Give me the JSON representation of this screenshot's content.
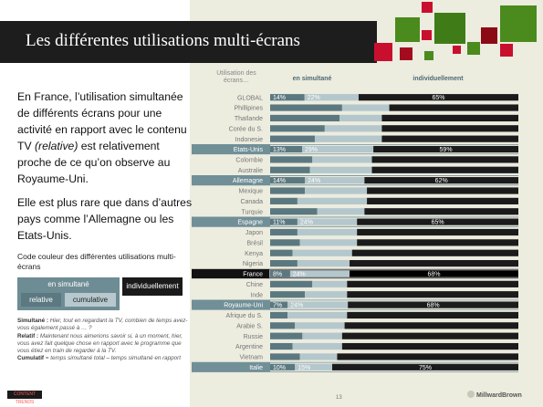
{
  "header": {
    "title": "Les différentes utilisations multi-écrans"
  },
  "text": {
    "para1_a": "En France, l’utilisation simultanée de différents écrans pour une activité en rapport avec le contenu TV ",
    "para1_em": "(relative)",
    "para1_b": " est relativement proche de ce qu’on observe au Royaume-Uni.",
    "para2": "Elle est plus rare que dans d’autres pays comme l’Allemagne ou les Etats-Unis."
  },
  "legend": {
    "title": "Code couleur des différentes utilisations multi-écrans",
    "simultane": "en simultané",
    "relative": "relative",
    "cumulative": "cumulative",
    "individuellement": "individuellement"
  },
  "notes": {
    "simultane_label": "Simultané :",
    "simultane_text": " Hier, tout en regardant la TV, combien de temps avez-vous également passé à … ?",
    "relatif_label": "Relatif :",
    "relatif_text": " Maintenant nous aimerions savoir si, à un moment, hier, vous avez fait quelque chose en rapport avec le programme que vous étiez en train de regarder à la TV.",
    "cumulatif_label": "Cumulatif",
    "cumulatif_text": " = temps simultané total – temps simultané en rapport"
  },
  "footer": {
    "page": "13",
    "brand": "MillwardBrown",
    "left_logo": "CONTENT TRENDS"
  },
  "colors": {
    "relative": "#5b7880",
    "cumulative": "#b4c7cc",
    "individual": "#1b1b1b",
    "highlight_row": "#718f97",
    "france_row": "#111111",
    "accent_red": "#c8102e",
    "accent_green": "#4b8a1d"
  },
  "chart_data": {
    "type": "bar",
    "stacked": true,
    "orientation": "horizontal",
    "column_headers": {
      "category": "Utilisation des écrans…",
      "simultaneous": "en simultané",
      "individual": "individuellement"
    },
    "series": [
      {
        "name": "relative"
      },
      {
        "name": "cumulative"
      },
      {
        "name": "individuellement"
      }
    ],
    "categories": [
      "GLOBAL",
      "Phillipines",
      "Thaïlande",
      "Corée du S.",
      "Indonesie",
      "Etats-Unis",
      "Colombie",
      "Australie",
      "Allemagne",
      "Mexique",
      "Canada",
      "Turquie",
      "Espagne",
      "Japon",
      "Brésil",
      "Kenya",
      "Nigeria",
      "France",
      "Chine",
      "Inde",
      "Royaume-Uni",
      "Afrique du S.",
      "Arabie S.",
      "Russie",
      "Argentine",
      "Vietnam",
      "Italie"
    ],
    "rows": [
      {
        "label": "GLOBAL",
        "relative": 14,
        "cumulative": 22,
        "individual": 65,
        "show_values": true,
        "highlight": false
      },
      {
        "label": "Phillipines",
        "relative": 29,
        "cumulative": 19,
        "individual": 52,
        "show_values": false,
        "highlight": false
      },
      {
        "label": "Thaïlande",
        "relative": 28,
        "cumulative": 17,
        "individual": 55,
        "show_values": false,
        "highlight": false
      },
      {
        "label": "Corée du S.",
        "relative": 22,
        "cumulative": 23,
        "individual": 55,
        "show_values": false,
        "highlight": false
      },
      {
        "label": "Indonesie",
        "relative": 18,
        "cumulative": 27,
        "individual": 55,
        "show_values": false,
        "highlight": false
      },
      {
        "label": "Etats-Unis",
        "relative": 13,
        "cumulative": 29,
        "individual": 59,
        "show_values": true,
        "highlight": true
      },
      {
        "label": "Colombie",
        "relative": 17,
        "cumulative": 24,
        "individual": 59,
        "show_values": false,
        "highlight": false
      },
      {
        "label": "Australie",
        "relative": 16,
        "cumulative": 25,
        "individual": 59,
        "show_values": false,
        "highlight": false
      },
      {
        "label": "Allemagne",
        "relative": 14,
        "cumulative": 24,
        "individual": 62,
        "show_values": true,
        "highlight": true
      },
      {
        "label": "Mexique",
        "relative": 14,
        "cumulative": 25,
        "individual": 61,
        "show_values": false,
        "highlight": false
      },
      {
        "label": "Canada",
        "relative": 11,
        "cumulative": 28,
        "individual": 61,
        "show_values": false,
        "highlight": false
      },
      {
        "label": "Turquie",
        "relative": 19,
        "cumulative": 19,
        "individual": 62,
        "show_values": false,
        "highlight": false
      },
      {
        "label": "Espagne",
        "relative": 11,
        "cumulative": 24,
        "individual": 65,
        "show_values": true,
        "highlight": true
      },
      {
        "label": "Japon",
        "relative": 11,
        "cumulative": 24,
        "individual": 65,
        "show_values": false,
        "highlight": false
      },
      {
        "label": "Brésil",
        "relative": 12,
        "cumulative": 23,
        "individual": 65,
        "show_values": false,
        "highlight": false
      },
      {
        "label": "Kenya",
        "relative": 9,
        "cumulative": 24,
        "individual": 67,
        "show_values": false,
        "highlight": false
      },
      {
        "label": "Nigeria",
        "relative": 11,
        "cumulative": 21,
        "individual": 68,
        "show_values": false,
        "highlight": false
      },
      {
        "label": "France",
        "relative": 8,
        "cumulative": 24,
        "individual": 68,
        "show_values": true,
        "highlight": "france"
      },
      {
        "label": "Chine",
        "relative": 17,
        "cumulative": 14,
        "individual": 69,
        "show_values": false,
        "highlight": false
      },
      {
        "label": "Inde",
        "relative": 14,
        "cumulative": 17,
        "individual": 69,
        "show_values": false,
        "highlight": false
      },
      {
        "label": "Royaume-Uni",
        "relative": 7,
        "cumulative": 24,
        "individual": 68,
        "show_values": true,
        "highlight": true
      },
      {
        "label": "Afrique du S.",
        "relative": 7,
        "cumulative": 24,
        "individual": 69,
        "show_values": false,
        "highlight": false
      },
      {
        "label": "Arabie S.",
        "relative": 10,
        "cumulative": 20,
        "individual": 70,
        "show_values": false,
        "highlight": false
      },
      {
        "label": "Russie",
        "relative": 13,
        "cumulative": 16,
        "individual": 71,
        "show_values": false,
        "highlight": false
      },
      {
        "label": "Argentine",
        "relative": 9,
        "cumulative": 20,
        "individual": 71,
        "show_values": false,
        "highlight": false
      },
      {
        "label": "Vietnam",
        "relative": 12,
        "cumulative": 15,
        "individual": 73,
        "show_values": false,
        "highlight": false
      },
      {
        "label": "Italie",
        "relative": 10,
        "cumulative": 15,
        "individual": 75,
        "show_values": true,
        "highlight": true
      }
    ],
    "xlim": [
      0,
      100
    ],
    "grid": false,
    "legend": "bottom-left"
  }
}
